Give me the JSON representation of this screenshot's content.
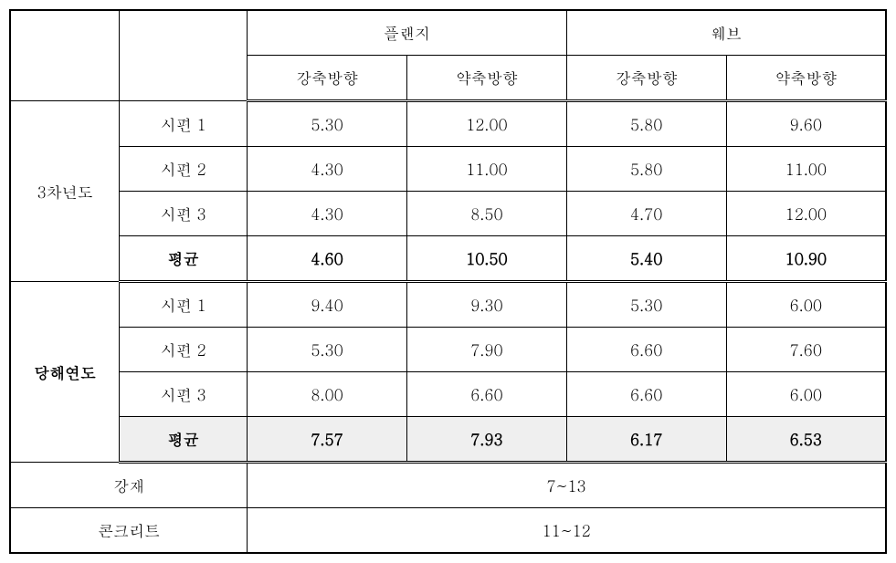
{
  "header": {
    "flange": "플랜지",
    "web": "웨브",
    "strong": "강축방향",
    "weak": "약축방향"
  },
  "groups": [
    {
      "label": "3차년도",
      "rows": [
        {
          "label": "시편 1",
          "cells": [
            "5.30",
            "12.00",
            "5.80",
            "9.60"
          ]
        },
        {
          "label": "시편 2",
          "cells": [
            "4.30",
            "11.00",
            "5.80",
            "11.00"
          ]
        },
        {
          "label": "시편 3",
          "cells": [
            "4.30",
            "8.50",
            "4.70",
            "12.00"
          ]
        },
        {
          "label": "평균",
          "cells": [
            "4.60",
            "10.50",
            "5.40",
            "10.90"
          ],
          "bold": true
        }
      ]
    },
    {
      "label": "당해연도",
      "rows": [
        {
          "label": "시편 1",
          "cells": [
            "9.40",
            "9.30",
            "5.30",
            "6.00"
          ]
        },
        {
          "label": "시편 2",
          "cells": [
            "5.30",
            "7.90",
            "6.60",
            "7.60"
          ]
        },
        {
          "label": "시편 3",
          "cells": [
            "8.00",
            "6.60",
            "6.60",
            "6.00"
          ]
        },
        {
          "label": "평균",
          "cells": [
            "7.57",
            "7.93",
            "6.17",
            "6.53"
          ],
          "bold": true,
          "shaded": true
        }
      ]
    }
  ],
  "footer": [
    {
      "label": "강재",
      "value": "7~13"
    },
    {
      "label": "콘크리트",
      "value": "11~12"
    }
  ]
}
